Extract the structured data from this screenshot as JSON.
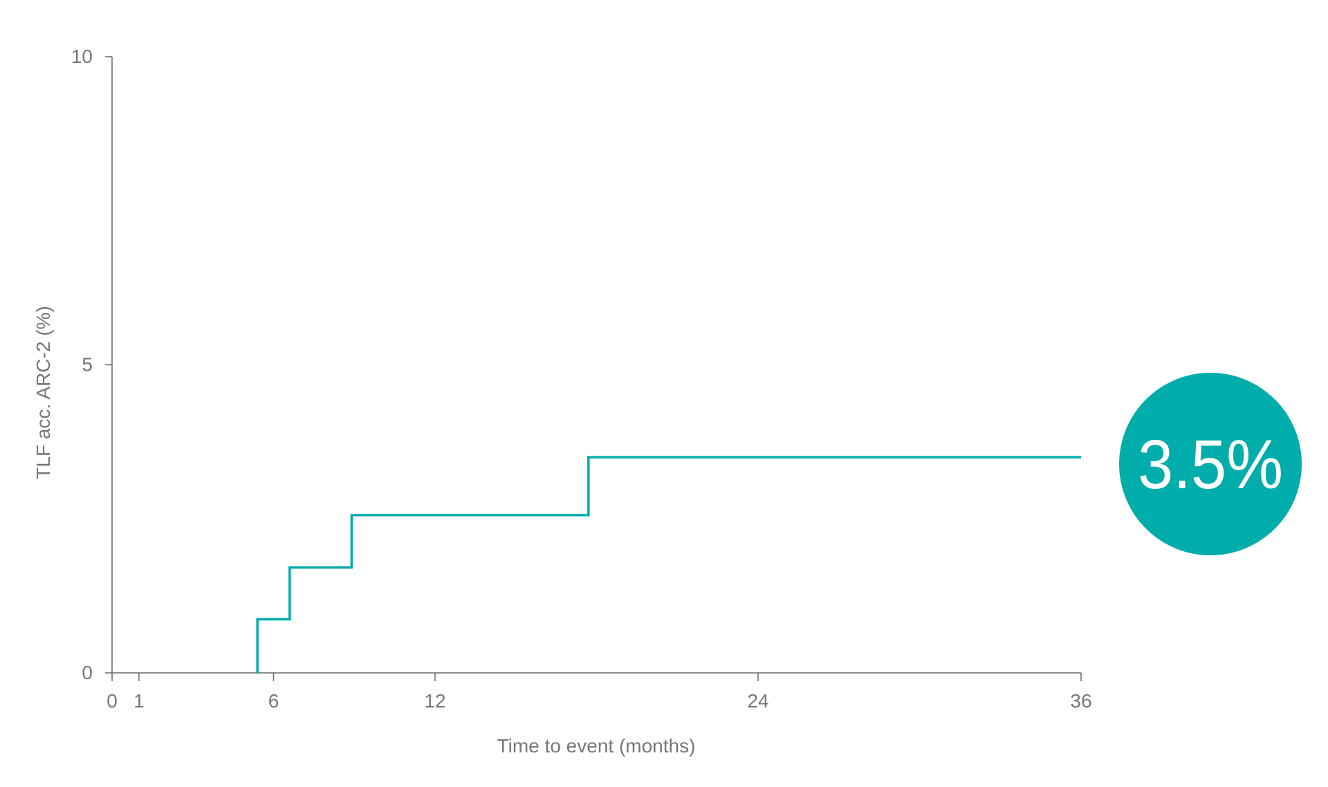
{
  "chart_data": {
    "type": "line",
    "step": true,
    "title": "",
    "xlabel": "Time to event (months)",
    "ylabel": "TLF acc. ARC-2 (%)",
    "xlim": [
      0,
      36
    ],
    "ylim": [
      0,
      10
    ],
    "xticks": [
      0,
      1,
      6,
      12,
      24,
      36
    ],
    "yticks": [
      0,
      5,
      10
    ],
    "grid": false,
    "series": [
      {
        "x": [
          5.4,
          6.6,
          8.9,
          17.7,
          36
        ],
        "y": [
          0.87,
          1.71,
          2.56,
          3.5,
          3.5
        ]
      }
    ],
    "annotation": {
      "text": "3.5%",
      "color": "#00ADAA"
    },
    "colors": {
      "line": "#00ADAA",
      "axis": "#666666",
      "text": "#777777"
    }
  }
}
